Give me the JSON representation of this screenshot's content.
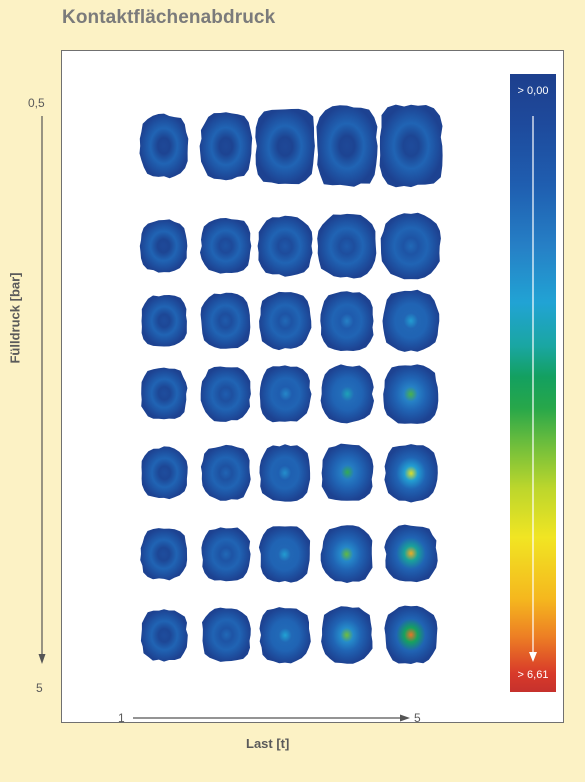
{
  "title": "Kontaktflächenabdruck",
  "y_axis": {
    "label": "Fülldruck [bar]",
    "start": "0,5",
    "end": "5"
  },
  "x_axis": {
    "label": "Last [t]",
    "start": "1",
    "end": "5"
  },
  "colorbar": {
    "top_label": "> 0,00",
    "bottom_label": "> 6,61"
  },
  "grid": {
    "rows": 7,
    "cols": 5,
    "intensity": [
      [
        0.05,
        0.05,
        0.05,
        0.05,
        0.07
      ],
      [
        0.06,
        0.12,
        0.14,
        0.16,
        0.22
      ],
      [
        0.08,
        0.16,
        0.22,
        0.3,
        0.38
      ],
      [
        0.08,
        0.18,
        0.32,
        0.42,
        0.55
      ],
      [
        0.08,
        0.2,
        0.34,
        0.52,
        0.7
      ],
      [
        0.08,
        0.22,
        0.38,
        0.58,
        0.8
      ],
      [
        0.08,
        0.22,
        0.4,
        0.6,
        0.88
      ]
    ],
    "size": [
      [
        0.5,
        0.62,
        0.86,
        0.94,
        0.98
      ],
      [
        0.46,
        0.6,
        0.72,
        0.86,
        0.92
      ],
      [
        0.44,
        0.56,
        0.62,
        0.7,
        0.76
      ],
      [
        0.44,
        0.54,
        0.62,
        0.66,
        0.72
      ],
      [
        0.44,
        0.54,
        0.6,
        0.64,
        0.66
      ],
      [
        0.44,
        0.52,
        0.6,
        0.62,
        0.64
      ],
      [
        0.44,
        0.52,
        0.58,
        0.62,
        0.64
      ]
    ]
  }
}
